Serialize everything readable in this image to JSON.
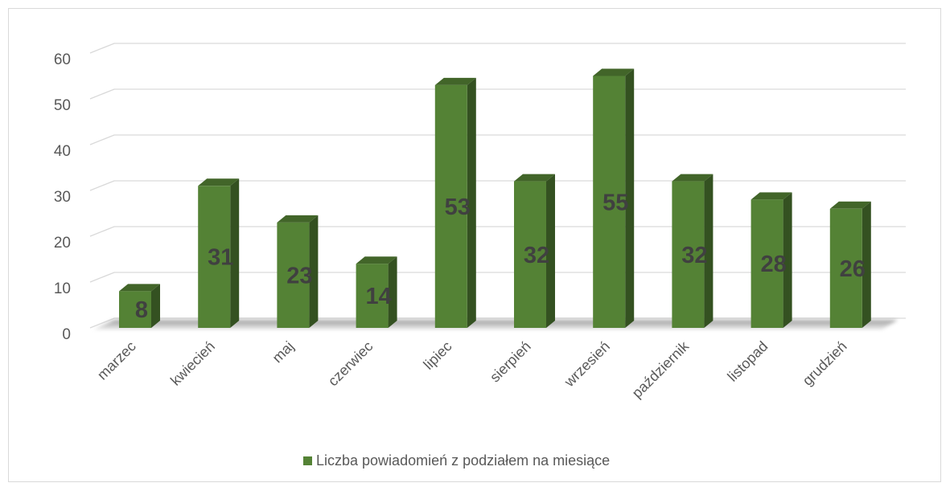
{
  "chart_data": {
    "type": "bar",
    "title": "",
    "xlabel": "",
    "ylabel": "",
    "categories": [
      "marzec",
      "kwiecień",
      "maj",
      "czerwiec",
      "lipiec",
      "sierpień",
      "wrzesień",
      "październik",
      "listopad",
      "grudzień"
    ],
    "series": [
      {
        "name": "Liczba powiadomień z podziałem na miesiące",
        "values": [
          8,
          31,
          23,
          14,
          53,
          32,
          55,
          32,
          28,
          26
        ],
        "color": "#548235"
      }
    ],
    "ylim": [
      0,
      60
    ],
    "yticks": [
      "0",
      "10",
      "20",
      "30",
      "40",
      "50",
      "60"
    ],
    "grid": true,
    "legend_position": "bottom",
    "style": "3d-column"
  }
}
